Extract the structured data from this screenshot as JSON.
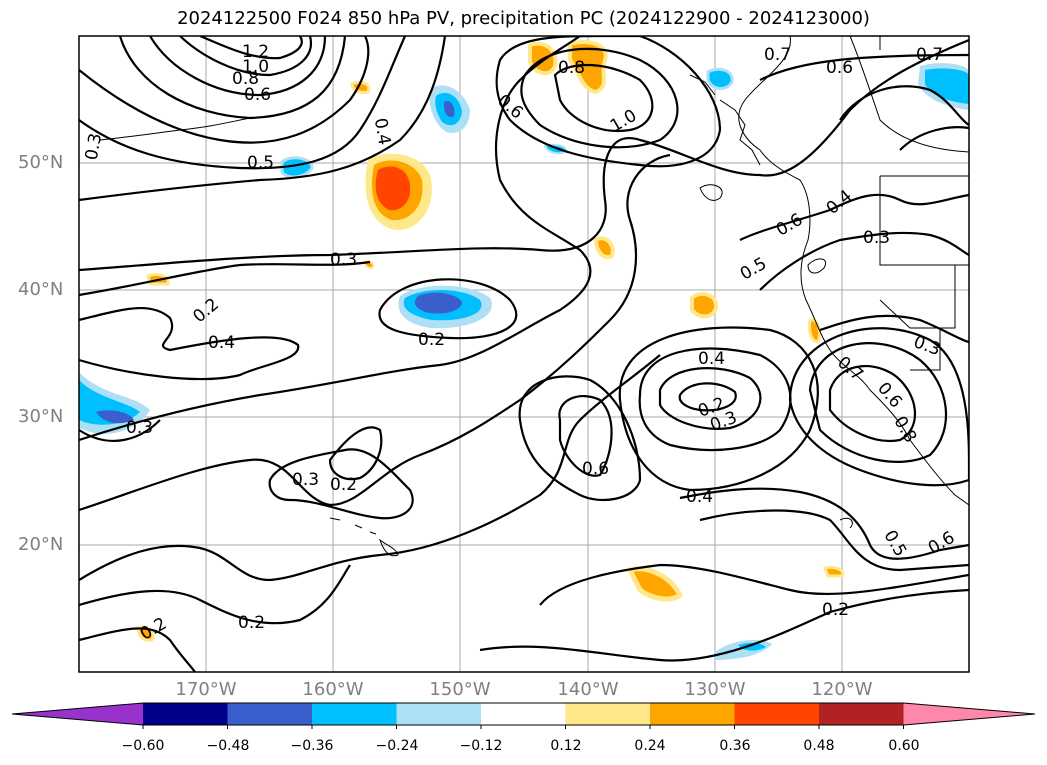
{
  "title": "2024122500 F024 850 hPa PV, precipitation PC (2024122900 - 2024123000)",
  "lat_labels": [
    "50°N",
    "40°N",
    "30°N",
    "20°N"
  ],
  "lon_labels": [
    "170°W",
    "160°W",
    "150°W",
    "140°W",
    "130°W",
    "120°W"
  ],
  "colorbar": {
    "ticks": [
      "−0.60",
      "−0.48",
      "−0.36",
      "−0.24",
      "−0.12",
      "0.12",
      "0.24",
      "0.36",
      "0.48",
      "0.60"
    ],
    "colors": [
      "#9932CC",
      "#00008B",
      "#3A5FCD",
      "#00BFFF",
      "#ADE0F5",
      "#FFFFFF",
      "#FFE88A",
      "#FFA500",
      "#FF4500",
      "#B22222",
      "#FF88AA"
    ]
  },
  "contour_labels": [
    "1.2",
    "1.0",
    "0.8",
    "0.6",
    "0.3",
    "0.5",
    "0.4",
    "0.3",
    "0.2",
    "0.4",
    "0.2",
    "0.3",
    "0.3",
    "0.2",
    "0.2",
    "0.2",
    "0.6",
    "0.8",
    "1.0",
    "0.7",
    "0.6",
    "0.7",
    "0.6",
    "0.4",
    "0.5",
    "0.4",
    "0.3",
    "0.3",
    "0.2",
    "0.3",
    "0.6",
    "0.4",
    "0.7",
    "0.6",
    "0.8",
    "0.5",
    "0.6",
    "0.2"
  ]
}
